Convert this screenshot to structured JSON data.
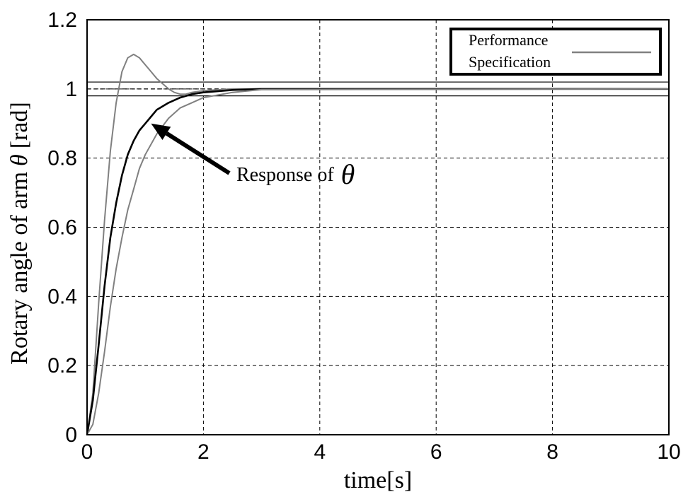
{
  "chart_data": {
    "type": "line",
    "xlabel": "time[s]",
    "ylabel": "Rotary angle of arm",
    "ylabel_symbol": "θ",
    "ylabel_unit": "[rad]",
    "xlim": [
      0,
      10
    ],
    "ylim": [
      0,
      1.2
    ],
    "xticks": [
      "0",
      "2",
      "4",
      "6",
      "8",
      "10"
    ],
    "yticks": [
      "0",
      "0.2",
      "0.4",
      "0.6",
      "0.8",
      "1",
      "1.2"
    ],
    "grid": true,
    "legend": {
      "line1": "Performance",
      "line2": "Specification",
      "placement": "top-right"
    },
    "annotation": {
      "text": "Response of",
      "symbol": "θ",
      "points_to": [
        1.1,
        0.9
      ]
    },
    "reference_lines": [
      {
        "y": 1.02,
        "color": "#000000"
      },
      {
        "y": 1.0,
        "color": "#000000",
        "style": "dashed"
      },
      {
        "y": 0.98,
        "color": "#000000"
      }
    ],
    "series": [
      {
        "color": "#808080",
        "x": [
          0,
          0.1,
          0.2,
          0.3,
          0.4,
          0.5,
          0.6,
          0.7,
          0.8,
          0.9,
          1.0,
          1.1,
          1.2,
          1.3,
          1.4,
          1.5,
          1.6,
          1.7,
          1.8,
          2.0,
          2.5,
          3.0,
          10
        ],
        "y": [
          0,
          0.12,
          0.38,
          0.62,
          0.82,
          0.96,
          1.05,
          1.09,
          1.1,
          1.09,
          1.07,
          1.05,
          1.03,
          1.015,
          1.0,
          0.99,
          0.985,
          0.985,
          0.99,
          0.995,
          1.0,
          1.0,
          1.0
        ]
      },
      {
        "color": "#000000",
        "x": [
          0,
          0.1,
          0.2,
          0.3,
          0.4,
          0.5,
          0.6,
          0.7,
          0.8,
          0.9,
          1.0,
          1.1,
          1.2,
          1.4,
          1.6,
          1.8,
          2.0,
          2.5,
          3.0,
          10
        ],
        "y": [
          0,
          0.1,
          0.26,
          0.43,
          0.57,
          0.67,
          0.75,
          0.81,
          0.85,
          0.88,
          0.9,
          0.92,
          0.94,
          0.96,
          0.975,
          0.985,
          0.99,
          0.997,
          1.0,
          1.0
        ]
      },
      {
        "color": "#808080",
        "x": [
          0,
          0.1,
          0.2,
          0.3,
          0.4,
          0.5,
          0.6,
          0.7,
          0.8,
          0.9,
          1.0,
          1.2,
          1.4,
          1.6,
          1.8,
          2.0,
          2.5,
          3.0,
          10
        ],
        "y": [
          0,
          0.03,
          0.12,
          0.24,
          0.37,
          0.48,
          0.57,
          0.65,
          0.71,
          0.77,
          0.81,
          0.87,
          0.915,
          0.945,
          0.96,
          0.975,
          0.99,
          0.998,
          1.0
        ]
      }
    ]
  }
}
